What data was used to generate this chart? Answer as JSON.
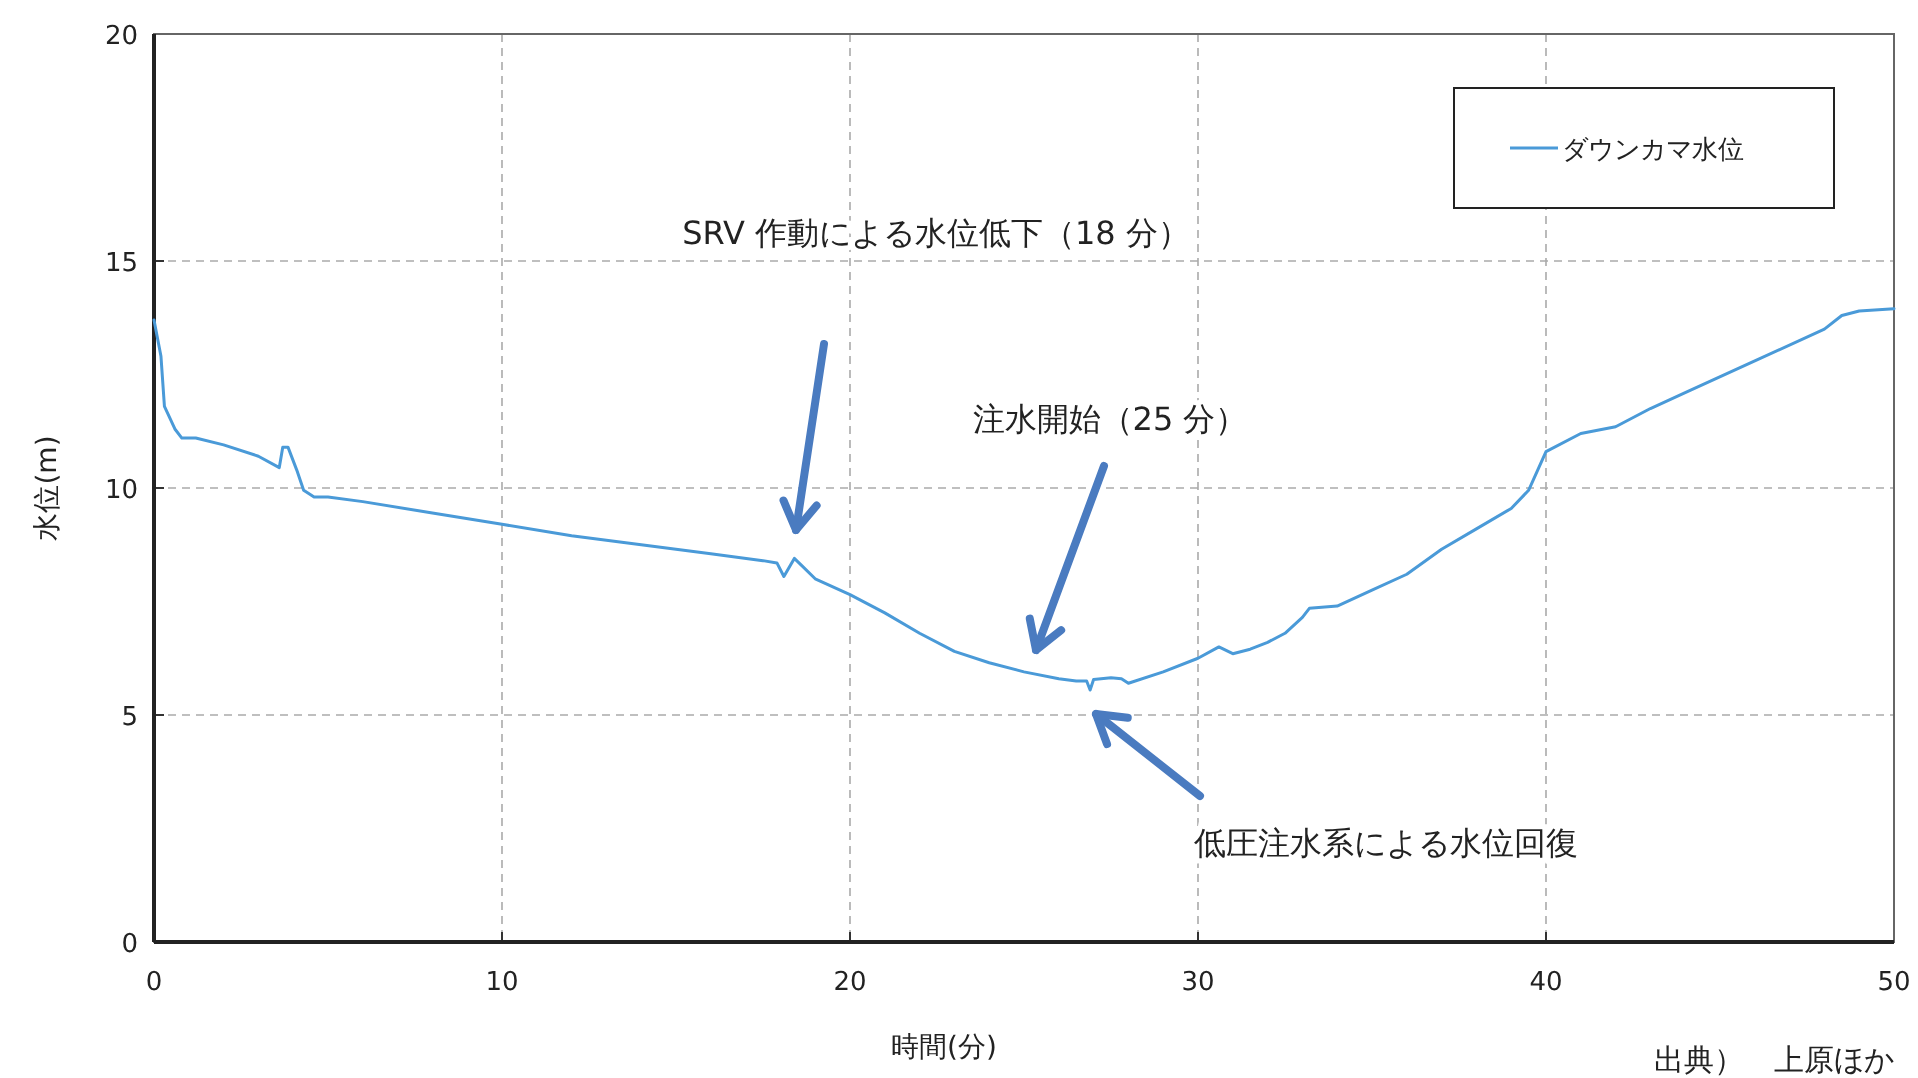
{
  "chart_data": {
    "type": "line",
    "xlabel": "時間(分)",
    "ylabel": "水位(m)",
    "xlim": [
      0,
      50
    ],
    "ylim": [
      0,
      20
    ],
    "xticks": [
      0,
      10,
      20,
      30,
      40,
      50
    ],
    "yticks": [
      0,
      5,
      10,
      15,
      20
    ],
    "grid": true,
    "legend": "top right",
    "line_style": "solid",
    "marker": "none",
    "x": [
      0,
      0.2,
      0.3,
      0.6,
      0.8,
      1.2,
      2,
      3,
      3.6,
      3.7,
      3.85,
      4.1,
      4.3,
      4.6,
      5,
      6,
      8,
      10,
      12,
      14,
      16,
      17.5,
      17.9,
      18.1,
      18.4,
      18.6,
      19,
      20,
      21,
      22,
      23,
      24,
      25,
      26,
      26.5,
      26.8,
      26.9,
      27,
      27.5,
      27.8,
      28,
      29,
      30,
      30.6,
      31,
      31.5,
      32,
      32.5,
      33,
      33.2,
      34,
      35,
      36,
      37,
      38,
      39,
      39.5,
      40,
      41,
      42,
      43,
      44,
      46,
      48,
      48.5,
      49,
      50
    ],
    "series": [
      {
        "name": "ダウンカマ水位",
        "color": "#4a9ad8",
        "values": [
          13.7,
          12.9,
          11.8,
          11.3,
          11.1,
          11.1,
          10.95,
          10.7,
          10.45,
          10.9,
          10.9,
          10.4,
          9.95,
          9.8,
          9.8,
          9.7,
          9.45,
          9.2,
          8.95,
          8.75,
          8.55,
          8.4,
          8.35,
          8.05,
          8.45,
          8.3,
          8.0,
          7.65,
          7.25,
          6.8,
          6.4,
          6.15,
          5.95,
          5.8,
          5.75,
          5.75,
          5.55,
          5.78,
          5.82,
          5.8,
          5.7,
          5.95,
          6.25,
          6.5,
          6.35,
          6.45,
          6.6,
          6.8,
          7.15,
          7.35,
          7.4,
          7.75,
          8.1,
          8.65,
          9.1,
          9.55,
          9.95,
          10.8,
          11.2,
          11.35,
          11.75,
          12.1,
          12.8,
          13.5,
          13.8,
          13.9,
          13.95
        ]
      }
    ],
    "annotations": [
      "SRV 作動による水位低下（18 分）",
      "注水開始（25 分）",
      "低圧注水系による水位回復",
      "出典）　上原ほか"
    ]
  }
}
